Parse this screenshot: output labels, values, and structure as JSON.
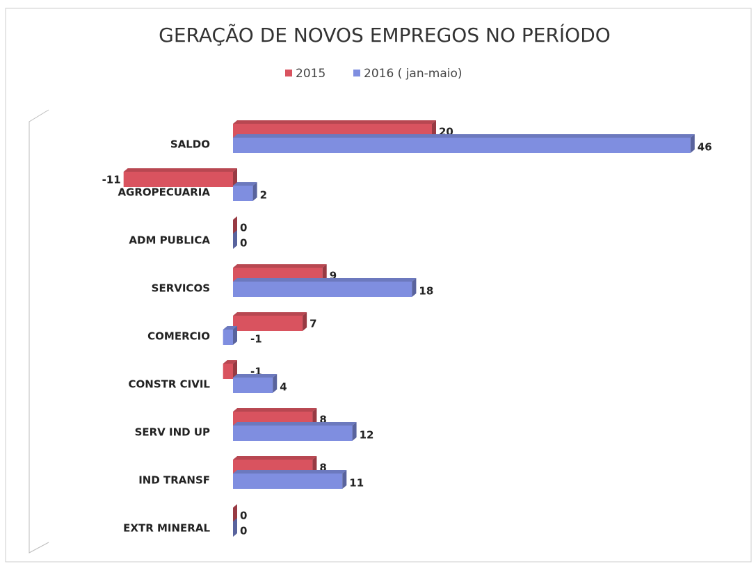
{
  "chart_data": {
    "type": "bar",
    "orientation": "horizontal",
    "title": "GERAÇÃO DE NOVOS EMPREGOS NO PERÍODO",
    "categories": [
      "SALDO",
      "AGROPECUARIA",
      "ADM PUBLICA",
      "SERVICOS",
      "COMERCIO",
      "CONSTR CIVIL",
      "SERV IND UP",
      "IND TRANSF",
      "EXTR MINERAL"
    ],
    "series": [
      {
        "name": "2015",
        "color": "#d9535f",
        "values": [
          20,
          -11,
          0,
          9,
          7,
          -1,
          8,
          8,
          0
        ]
      },
      {
        "name": "2016 ( jan-maio)",
        "color": "#7f8ee0",
        "values": [
          46,
          2,
          0,
          18,
          -1,
          4,
          12,
          11,
          0
        ]
      }
    ]
  }
}
